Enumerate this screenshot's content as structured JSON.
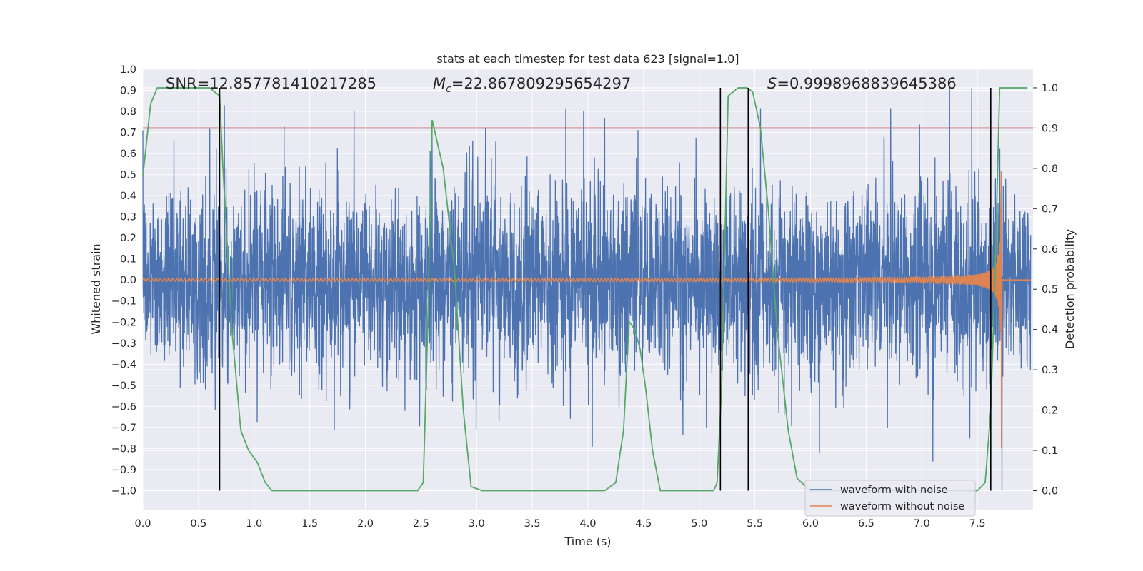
{
  "chart_data": {
    "type": "line",
    "title": "stats at each timestep for test data 623 [signal=1.0]",
    "xlabel": "Time (s)",
    "ylabel": "Whitened strain",
    "y2label": "Detection probability",
    "xlim": [
      0.0,
      8.0
    ],
    "ylim": [
      -1.09,
      1.0
    ],
    "y2lim": [
      -0.047,
      1.046
    ],
    "x_ticks": [
      "0.0",
      "0.5",
      "1.0",
      "1.5",
      "2.0",
      "2.5",
      "3.0",
      "3.5",
      "4.0",
      "4.5",
      "5.0",
      "5.5",
      "6.0",
      "6.5",
      "7.0",
      "7.5"
    ],
    "y_ticks": [
      "1.0",
      "0.9",
      "0.8",
      "0.7",
      "0.6",
      "0.5",
      "0.4",
      "0.3",
      "0.2",
      "0.1",
      "0.0",
      "−0.1",
      "−0.2",
      "−0.3",
      "−0.4",
      "−0.5",
      "−0.6",
      "−0.7",
      "−0.8",
      "−0.9",
      "−1.0"
    ],
    "y2_ticks": [
      "1.0",
      "0.9",
      "0.8",
      "0.7",
      "0.6",
      "0.5",
      "0.4",
      "0.3",
      "0.2",
      "0.1",
      "0.0"
    ],
    "annotations": {
      "snr": "SNR=12.857781410217285",
      "mc_symbol": "M",
      "mc_sub": "c",
      "mc_value": "=22.867809295654297",
      "s_symbol": "S",
      "s_value": "=0.9998968839645386"
    },
    "threshold_line": {
      "axis": "y2",
      "value": 0.9,
      "color": "#c44e52"
    },
    "vertical_markers": [
      0.69,
      5.19,
      5.44,
      7.62
    ],
    "series": [
      {
        "name": "waveform with noise",
        "color": "#4c72b0",
        "sample_rate_hz": 512,
        "noise_amplitude": 0.23,
        "peak_spikes": [
          {
            "t": 0.66,
            "v": 0.62
          },
          {
            "t": 1.27,
            "v": 0.73
          },
          {
            "t": 1.72,
            "v": 0.76
          },
          {
            "t": 2.6,
            "v": 0.71
          },
          {
            "t": 3.08,
            "v": 0.72
          },
          {
            "t": 3.8,
            "v": 0.81
          },
          {
            "t": 3.96,
            "v": 0.8
          },
          {
            "t": 4.45,
            "v": 0.71
          },
          {
            "t": 4.04,
            "v": -0.79
          },
          {
            "t": 5.55,
            "v": 0.81
          },
          {
            "t": 6.72,
            "v": 0.81
          },
          {
            "t": 7.45,
            "v": 0.91
          },
          {
            "t": 7.25,
            "v": 0.91
          },
          {
            "t": 6.08,
            "v": -0.82
          },
          {
            "t": 7.1,
            "v": -0.86
          },
          {
            "t": 7.72,
            "v": -1.0
          },
          {
            "t": 1.72,
            "v": -0.71
          }
        ]
      },
      {
        "name": "waveform without noise",
        "color": "#dd8452",
        "chirp_start_hz": 10,
        "chirp_end_hz": 100,
        "coalescence_time": 7.72,
        "amplitude_start": 0.006,
        "amplitude_peak": 0.8
      },
      {
        "name": "Detection probability",
        "axis": "y2",
        "color": "#55a868",
        "x": [
          0.0,
          0.07,
          0.13,
          0.2,
          0.25,
          0.3,
          0.4,
          0.5,
          0.6,
          0.69,
          0.72,
          0.8,
          0.88,
          0.95,
          1.03,
          1.1,
          1.16,
          1.25,
          1.4,
          1.6,
          1.8,
          2.0,
          2.2,
          2.4,
          2.47,
          2.52,
          2.56,
          2.6,
          2.7,
          2.8,
          2.88,
          2.95,
          3.05,
          3.2,
          3.5,
          3.8,
          4.0,
          4.15,
          4.25,
          4.32,
          4.37,
          4.42,
          4.47,
          4.52,
          4.58,
          4.65,
          4.72,
          4.8,
          4.9,
          5.05,
          5.13,
          5.16,
          5.2,
          5.26,
          5.35,
          5.43,
          5.48,
          5.55,
          5.62,
          5.7,
          5.8,
          5.88,
          6.0,
          6.3,
          6.6,
          6.9,
          7.2,
          7.4,
          7.5,
          7.57,
          7.62,
          7.66,
          7.7,
          7.75,
          7.85,
          7.95
        ],
        "values": [
          0.78,
          0.96,
          1.0,
          1.0,
          1.0,
          1.0,
          1.0,
          1.0,
          1.0,
          0.98,
          0.8,
          0.4,
          0.15,
          0.1,
          0.07,
          0.02,
          0.0,
          0.0,
          0.0,
          0.0,
          0.0,
          0.0,
          0.0,
          0.0,
          0.0,
          0.02,
          0.4,
          0.92,
          0.8,
          0.55,
          0.2,
          0.01,
          0.0,
          0.0,
          0.0,
          0.0,
          0.0,
          0.0,
          0.02,
          0.15,
          0.42,
          0.4,
          0.35,
          0.25,
          0.1,
          0.0,
          0.0,
          0.0,
          0.0,
          0.0,
          0.0,
          0.02,
          0.25,
          0.98,
          1.0,
          1.0,
          0.99,
          0.9,
          0.7,
          0.4,
          0.15,
          0.03,
          0.0,
          0.0,
          0.0,
          0.0,
          0.0,
          0.0,
          0.0,
          0.02,
          0.2,
          0.55,
          1.0,
          1.0,
          1.0,
          1.0
        ]
      }
    ],
    "legend": {
      "position": "lower-right",
      "entries": [
        {
          "label": "waveform with noise",
          "color": "#4c72b0"
        },
        {
          "label": "waveform without noise",
          "color": "#dd8452"
        }
      ]
    },
    "style": {
      "plot_bg": "#eaeaf2",
      "grid_color": "#ffffff",
      "vertical_marker_color": "#000000"
    }
  }
}
